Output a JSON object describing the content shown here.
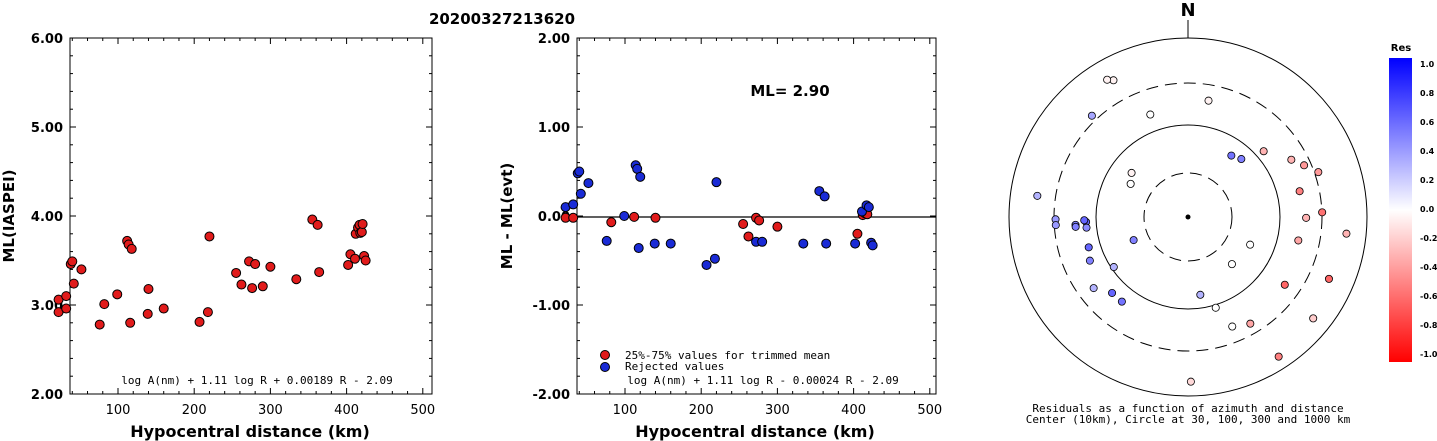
{
  "title": "20200327213620",
  "north_label": "N",
  "chart_data": [
    {
      "type": "scatter",
      "name": "ml-vs-distance",
      "xlabel": "Hypocentral distance (km)",
      "ylabel": "ML(IASPEI)",
      "xlim": [
        0,
        590
      ],
      "ylim": [
        2.0,
        6.0
      ],
      "xticks": [
        "100",
        "200",
        "300",
        "400",
        "500"
      ],
      "yticks": [
        "2.00",
        "3.00",
        "4.00",
        "5.00",
        "6.00"
      ],
      "formula": "log A(nm) + 1.11 log R + 0.00189 R - 2.09",
      "color": "#e11b1b",
      "points": [
        [
          22,
          2.92
        ],
        [
          22,
          3.06
        ],
        [
          32,
          3.1
        ],
        [
          32,
          2.96
        ],
        [
          38,
          3.46
        ],
        [
          40,
          3.49
        ],
        [
          42,
          3.24
        ],
        [
          52,
          3.4
        ],
        [
          76,
          2.78
        ],
        [
          82,
          3.01
        ],
        [
          99,
          3.12
        ],
        [
          112,
          3.72
        ],
        [
          114,
          3.68
        ],
        [
          116,
          2.8
        ],
        [
          118,
          3.63
        ],
        [
          139,
          2.9
        ],
        [
          140,
          3.18
        ],
        [
          160,
          2.96
        ],
        [
          207,
          2.81
        ],
        [
          218,
          2.92
        ],
        [
          220,
          3.77
        ],
        [
          255,
          3.36
        ],
        [
          262,
          3.23
        ],
        [
          272,
          3.49
        ],
        [
          276,
          3.19
        ],
        [
          280,
          3.46
        ],
        [
          290,
          3.21
        ],
        [
          300,
          3.43
        ],
        [
          334,
          3.29
        ],
        [
          355,
          3.96
        ],
        [
          362,
          3.9
        ],
        [
          364,
          3.37
        ],
        [
          402,
          3.45
        ],
        [
          405,
          3.57
        ],
        [
          411,
          3.52
        ],
        [
          412,
          3.8
        ],
        [
          415,
          3.87
        ],
        [
          417,
          3.9
        ],
        [
          418,
          3.81
        ],
        [
          420,
          3.82
        ],
        [
          421,
          3.91
        ],
        [
          423,
          3.55
        ],
        [
          425,
          3.5
        ]
      ]
    },
    {
      "type": "scatter",
      "name": "residual-vs-distance",
      "xlabel": "Hypocentral distance (km)",
      "ylabel": "ML - ML(evt)",
      "xlim": [
        0,
        590
      ],
      "ylim": [
        -2.0,
        2.0
      ],
      "xticks": [
        "100",
        "200",
        "300",
        "400",
        "500"
      ],
      "yticks": [
        "-2.00",
        "-1.00",
        "0.00",
        "1.00",
        "2.00"
      ],
      "ml_label": "ML= 2.90",
      "formula": "log A(nm) + 1.11 log R - 0.00024 R - 2.09",
      "legend": [
        "25%-75% values for trimmed mean",
        "Rejected values"
      ],
      "zero_line": 0.0,
      "series": [
        {
          "name": "25%-75% values for trimmed mean",
          "color": "#e11b1b",
          "points": [
            [
              22,
              -0.02
            ],
            [
              32,
              -0.02
            ],
            [
              82,
              -0.07
            ],
            [
              112,
              -0.01
            ],
            [
              140,
              -0.02
            ],
            [
              255,
              -0.09
            ],
            [
              262,
              -0.23
            ],
            [
              272,
              -0.02
            ],
            [
              276,
              -0.05
            ],
            [
              300,
              -0.12
            ],
            [
              405,
              -0.2
            ],
            [
              412,
              0.01
            ],
            [
              415,
              0.03
            ],
            [
              418,
              0.02
            ]
          ]
        },
        {
          "name": "Rejected values",
          "color": "#1a2bd6",
          "points": [
            [
              22,
              0.1
            ],
            [
              32,
              0.13
            ],
            [
              38,
              0.48
            ],
            [
              40,
              0.5
            ],
            [
              42,
              0.25
            ],
            [
              52,
              0.37
            ],
            [
              76,
              -0.28
            ],
            [
              99,
              0.0
            ],
            [
              114,
              0.57
            ],
            [
              116,
              0.53
            ],
            [
              118,
              -0.36
            ],
            [
              120,
              0.44
            ],
            [
              139,
              -0.31
            ],
            [
              160,
              -0.31
            ],
            [
              207,
              -0.55
            ],
            [
              218,
              -0.48
            ],
            [
              220,
              0.38
            ],
            [
              272,
              -0.29
            ],
            [
              280,
              -0.29
            ],
            [
              334,
              -0.31
            ],
            [
              355,
              0.28
            ],
            [
              362,
              0.22
            ],
            [
              364,
              -0.31
            ],
            [
              402,
              -0.31
            ],
            [
              411,
              0.05
            ],
            [
              417,
              0.12
            ],
            [
              420,
              0.1
            ],
            [
              423,
              -0.3
            ],
            [
              425,
              -0.33
            ]
          ]
        }
      ]
    },
    {
      "type": "scatter",
      "name": "polar-residuals",
      "caption_line1": "Residuals as a function of azimuth and distance",
      "caption_line2": "Center (10km), Circle at 30, 100, 300 and 1000 km",
      "points": [
        {
          "az": -28.6,
          "r": 0.87,
          "res": -0.05
        },
        {
          "az": -30.5,
          "r": 0.89,
          "res": -0.05
        },
        {
          "az": -43.5,
          "r": 0.78,
          "res": 0.35
        },
        {
          "az": -82,
          "r": 0.85,
          "res": 0.3
        },
        {
          "az": -91,
          "r": 0.74,
          "res": 0.4
        },
        {
          "az": -94,
          "r": 0.63,
          "res": 0.5
        },
        {
          "az": -92.8,
          "r": 0.57,
          "res": 0.6
        },
        {
          "az": -114,
          "r": 0.6,
          "res": 0.5
        },
        {
          "az": -93.5,
          "r": 0.74,
          "res": 0.4
        },
        {
          "az": -95,
          "r": 0.63,
          "res": 0.5
        },
        {
          "az": -91.8,
          "r": 0.58,
          "res": 0.6
        },
        {
          "az": -107,
          "r": 0.58,
          "res": 0.6
        },
        {
          "az": 42.6,
          "r": 0.44,
          "res": 0.5
        },
        {
          "az": 35.2,
          "r": 0.42,
          "res": 0.55
        },
        {
          "az": -20.2,
          "r": 0.61,
          "res": 0.0
        },
        {
          "az": 10,
          "r": 0.66,
          "res": -0.05
        },
        {
          "az": -60,
          "r": 0.37,
          "res": 0.0
        },
        {
          "az": -52,
          "r": 0.4,
          "res": -0.05
        },
        {
          "az": 49,
          "r": 0.56,
          "res": -0.3
        },
        {
          "az": 61,
          "r": 0.66,
          "res": -0.3
        },
        {
          "az": 66,
          "r": 0.71,
          "res": -0.4
        },
        {
          "az": 71,
          "r": 0.77,
          "res": -0.4
        },
        {
          "az": 77,
          "r": 0.64,
          "res": -0.5
        },
        {
          "az": 90.4,
          "r": 0.66,
          "res": -0.3
        },
        {
          "az": 88,
          "r": 0.75,
          "res": -0.55
        },
        {
          "az": 96,
          "r": 0.89,
          "res": -0.3
        },
        {
          "az": 102,
          "r": 0.63,
          "res": -0.35
        },
        {
          "az": 113.7,
          "r": 0.86,
          "res": -0.6
        },
        {
          "az": 125,
          "r": 0.66,
          "res": -0.6
        },
        {
          "az": 149.7,
          "r": 0.69,
          "res": -0.35
        },
        {
          "az": 147,
          "r": 0.93,
          "res": -0.5
        },
        {
          "az": 158,
          "r": 0.66,
          "res": 0.0
        },
        {
          "az": 163,
          "r": 0.53,
          "res": 0.0
        },
        {
          "az": 171,
          "r": 0.44,
          "res": 0.3
        },
        {
          "az": 179,
          "r": 0.92,
          "res": -0.15
        },
        {
          "az": 137,
          "r": 0.36,
          "res": 0.0
        },
        {
          "az": 114,
          "r": 0.38,
          "res": 0.0
        },
        {
          "az": -113,
          "r": 0.33,
          "res": 0.5
        },
        {
          "az": -135,
          "r": 0.6,
          "res": 0.6
        },
        {
          "az": -142,
          "r": 0.6,
          "res": 0.55
        },
        {
          "az": -124,
          "r": 0.5,
          "res": 0.3
        },
        {
          "az": -127,
          "r": 0.66,
          "res": 0.3
        },
        {
          "az": -96,
          "r": 0.57,
          "res": 0.45
        },
        {
          "az": 129,
          "r": 0.9,
          "res": -0.2
        }
      ]
    },
    {
      "type": "heatmap",
      "name": "res-colorbar",
      "title": "Res",
      "ticks": [
        "1.0",
        "0.8",
        "0.6",
        "0.4",
        "0.2",
        "0.0",
        "-0.2",
        "-0.4",
        "-0.6",
        "-0.8",
        "-1.0"
      ],
      "range": [
        -1.0,
        1.0
      ],
      "color_high": "#0000ff",
      "color_mid": "#ffffff",
      "color_low": "#ff0000"
    }
  ]
}
